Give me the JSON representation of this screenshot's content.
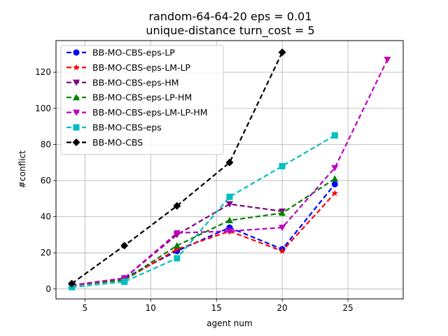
{
  "chart_data": {
    "type": "line",
    "title_line1": "random-64-64-20    eps = 0.01",
    "title_line2": "unique-distance    turn_cost = 5",
    "xlabel": "agent num",
    "ylabel": "#conflict",
    "xlim": [
      2.8,
      29.2
    ],
    "ylim": [
      -5.5,
      137.5
    ],
    "xticks": [
      5,
      10,
      15,
      20,
      25
    ],
    "yticks": [
      0,
      20,
      40,
      60,
      80,
      100,
      120
    ],
    "grid": true,
    "legend_position": "top-left",
    "series": [
      {
        "name": "BB-MO-CBS-eps-LP",
        "color": "#0000ff",
        "marker": "circle",
        "x": [
          4,
          8,
          12,
          16,
          20,
          24
        ],
        "y": [
          2,
          6,
          21,
          34,
          22,
          58
        ]
      },
      {
        "name": "BB-MO-CBS-eps-LM-LP",
        "color": "#ff0000",
        "marker": "star",
        "x": [
          4,
          8,
          12,
          16,
          20,
          24
        ],
        "y": [
          2,
          5,
          22,
          32,
          21,
          53
        ]
      },
      {
        "name": "BB-MO-CBS-eps-HM",
        "color": "#800080",
        "marker": "triangle-down",
        "x": [
          4,
          8,
          12,
          16,
          20
        ],
        "y": [
          2,
          6,
          30,
          47,
          43
        ]
      },
      {
        "name": "BB-MO-CBS-eps-LP-HM",
        "color": "#008000",
        "marker": "triangle-up",
        "x": [
          4,
          8,
          12,
          16,
          20,
          24
        ],
        "y": [
          2,
          5,
          24,
          38,
          42,
          61
        ]
      },
      {
        "name": "BB-MO-CBS-eps-LM-LP-HM",
        "color": "#bf00bf",
        "marker": "triangle-down",
        "x": [
          4,
          8,
          12,
          16,
          20,
          24,
          28
        ],
        "y": [
          2,
          6,
          31,
          32,
          34,
          67,
          127
        ]
      },
      {
        "name": "BB-MO-CBS-eps",
        "color": "#00bfbf",
        "marker": "square",
        "x": [
          4,
          8,
          12,
          16,
          20,
          24
        ],
        "y": [
          1,
          4,
          17,
          51,
          68,
          85
        ]
      },
      {
        "name": "BB-MO-CBS",
        "color": "#000000",
        "marker": "diamond",
        "x": [
          4,
          8,
          12,
          16,
          20
        ],
        "y": [
          3,
          24,
          46,
          70,
          131
        ]
      }
    ]
  }
}
